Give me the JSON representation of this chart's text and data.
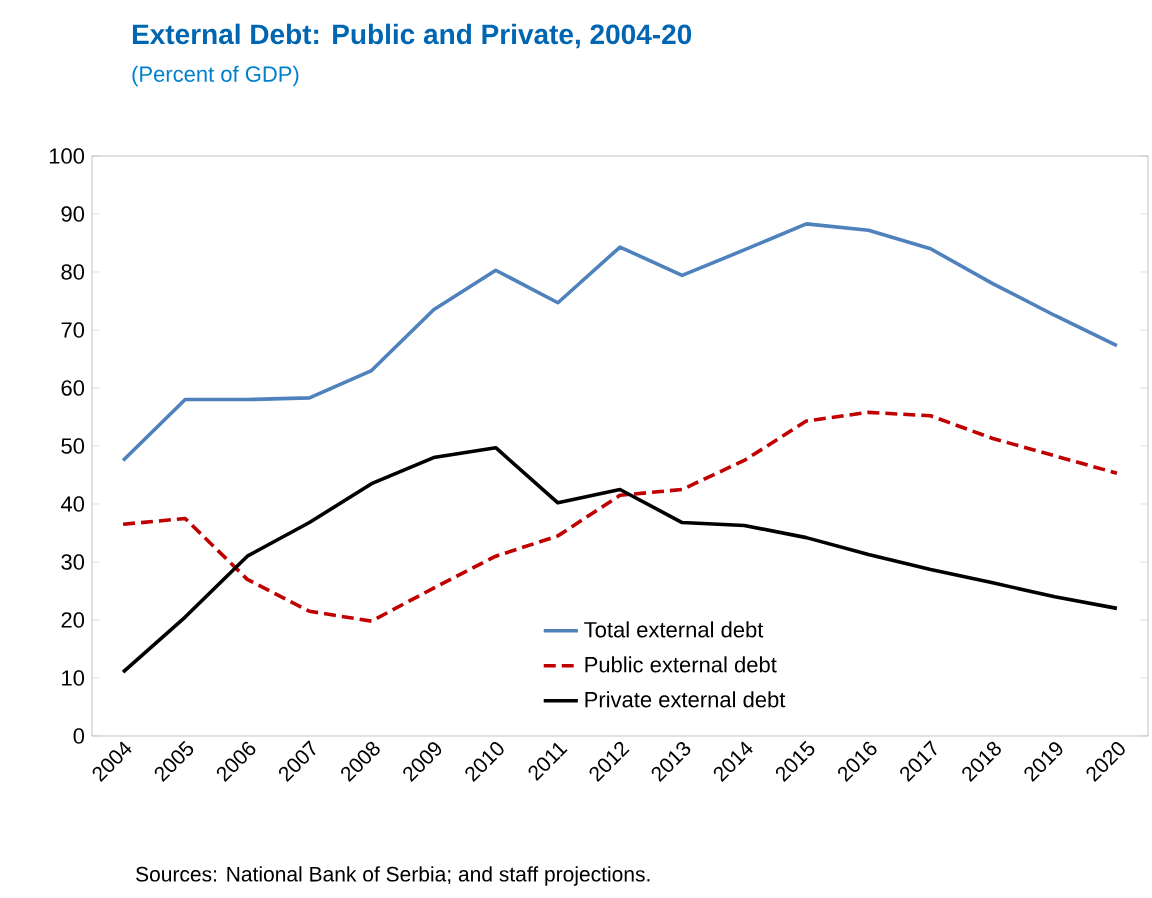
{
  "chart_data": {
    "type": "line",
    "title": "External Debt: Public and Private, 2004-20",
    "subtitle": "(Percent of GDP)",
    "categories": [
      "2004",
      "2005",
      "2006",
      "2007",
      "2008",
      "2009",
      "2010",
      "2011",
      "2012",
      "2013",
      "2014",
      "2015",
      "2016",
      "2017",
      "2018",
      "2019",
      "2020"
    ],
    "series": [
      {
        "name": "Total external debt",
        "color": "#4f81bd",
        "line_style": "solid",
        "values": [
          47.5,
          58,
          58,
          58.3,
          63,
          73.5,
          80.3,
          74.7,
          84.3,
          79.4,
          83.8,
          88.3,
          87.2,
          84,
          78,
          72.5,
          67.3
        ]
      },
      {
        "name": "Public external debt",
        "color": "#c00000",
        "line_style": "dashed",
        "values": [
          36.5,
          37.5,
          27,
          21.5,
          19.8,
          25.5,
          31,
          34.5,
          41.5,
          42.5,
          47.5,
          54.3,
          55.8,
          55.2,
          51.3,
          48.3,
          45.3
        ]
      },
      {
        "name": "Private external debt",
        "color": "#000000",
        "line_style": "solid",
        "values": [
          11,
          20.5,
          31,
          36.8,
          43.5,
          48,
          49.7,
          40.2,
          42.5,
          36.8,
          36.3,
          34.2,
          31.3,
          28.7,
          26.4,
          24,
          22
        ]
      }
    ],
    "ylim": [
      0,
      100
    ],
    "yticks": [
      0,
      10,
      20,
      30,
      40,
      50,
      60,
      70,
      80,
      90,
      100
    ],
    "grid": false,
    "legend": "bottom right",
    "annotations": [
      "Sources: National Bank of Serbia; and staff projections."
    ]
  }
}
